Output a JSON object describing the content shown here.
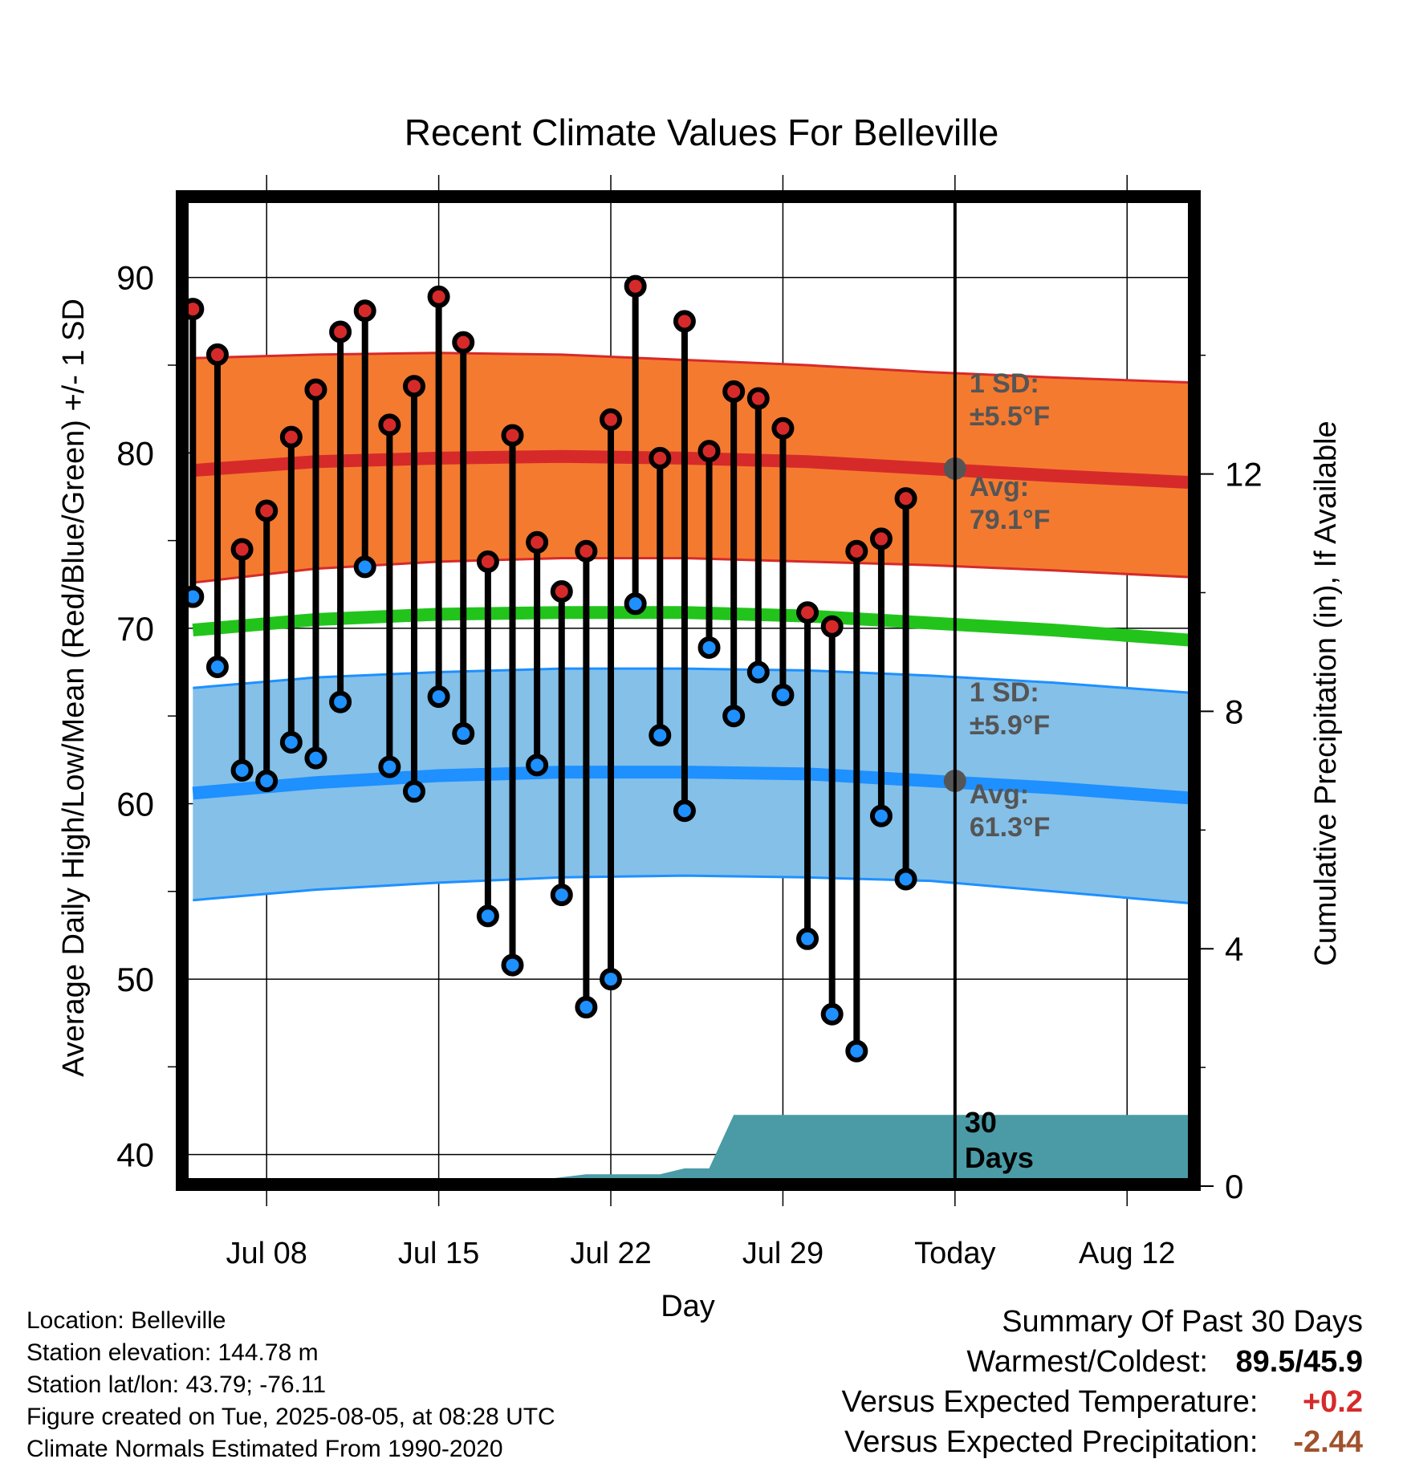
{
  "title": "Recent Climate Values For Belleville",
  "chart_data": {
    "type": "line",
    "title": "Recent Climate Values For Belleville",
    "xlabel": "Day",
    "ylabel": "Average Daily High/Low/Mean (Red/Blue/Green) +/- 1 SD",
    "y2label": "Cumulative Precipitation (in), If Available",
    "ylim": [
      38.2,
      94.7
    ],
    "y_ticks": [
      40,
      50,
      60,
      70,
      80,
      90
    ],
    "y2lim": [
      0,
      16.7
    ],
    "y2_ticks": [
      0,
      4,
      8,
      12
    ],
    "xlim": [
      4.5,
      45.8
    ],
    "x_tick_days": [
      8,
      15,
      22,
      29,
      36,
      43
    ],
    "x_tick_labels": [
      "Jul 08",
      "Jul 15",
      "Jul 22",
      "Jul 29",
      "Today",
      "Aug 12"
    ],
    "today_day": 36,
    "grid": true,
    "colors": {
      "high_band": "#f47a30",
      "high_line": "#d62a2a",
      "low_band": "#84c0e8",
      "low_line": "#1e90ff",
      "mean_line": "#22c41c",
      "precip": "#4a9ba5",
      "high_dot": "#d62a2a",
      "low_dot": "#1e90ff",
      "avg_marker": "#555555"
    },
    "normals": {
      "days": [
        5,
        10,
        15,
        20,
        25,
        30,
        35,
        40,
        45.8
      ],
      "high_upper": [
        85.4,
        85.6,
        85.7,
        85.6,
        85.3,
        85.0,
        84.6,
        84.3,
        84.0
      ],
      "high_avg": [
        79.0,
        79.5,
        79.7,
        79.8,
        79.7,
        79.5,
        79.1,
        78.7,
        78.3
      ],
      "high_lower": [
        72.6,
        73.4,
        73.8,
        74.0,
        74.0,
        73.8,
        73.6,
        73.3,
        72.9
      ],
      "mean": [
        69.9,
        70.5,
        70.8,
        70.9,
        70.9,
        70.7,
        70.3,
        69.9,
        69.3
      ],
      "low_upper": [
        66.6,
        67.2,
        67.5,
        67.7,
        67.7,
        67.6,
        67.3,
        66.9,
        66.3
      ],
      "low_avg": [
        60.6,
        61.2,
        61.6,
        61.8,
        61.8,
        61.7,
        61.3,
        60.9,
        60.3
      ],
      "low_lower": [
        54.5,
        55.1,
        55.5,
        55.8,
        55.9,
        55.8,
        55.6,
        55.0,
        54.3
      ]
    },
    "observations": {
      "days": [
        5,
        6,
        7,
        8,
        9,
        10,
        11,
        12,
        13,
        14,
        15,
        16,
        17,
        18,
        19,
        20,
        21,
        22,
        23,
        24,
        25,
        26,
        27,
        28,
        29,
        30,
        31,
        32,
        33,
        34,
        35
      ],
      "high": [
        88.2,
        85.6,
        74.5,
        76.7,
        80.9,
        83.6,
        86.9,
        88.1,
        81.6,
        83.8,
        88.9,
        86.3,
        73.8,
        81.0,
        74.9,
        72.1,
        74.4,
        81.9,
        89.5,
        79.7,
        87.5,
        80.1,
        83.5,
        83.1,
        81.4,
        70.9,
        70.1,
        74.4,
        75.1,
        77.4,
        null
      ],
      "low": [
        71.8,
        67.8,
        61.9,
        61.3,
        63.5,
        62.6,
        65.8,
        73.5,
        62.1,
        60.7,
        66.1,
        64.0,
        53.6,
        50.8,
        62.2,
        54.8,
        48.4,
        50.0,
        71.4,
        63.9,
        59.6,
        68.9,
        65.0,
        67.5,
        66.2,
        52.3,
        48.0,
        45.9,
        59.3,
        55.7,
        null
      ]
    },
    "precipitation": {
      "days": [
        4.5,
        16,
        18,
        19,
        21,
        22,
        24,
        25,
        26,
        27,
        45.8
      ],
      "cumulative": [
        0,
        0,
        0,
        0.1,
        0.2,
        0.2,
        0.2,
        0.3,
        0.3,
        1.2,
        1.2
      ]
    },
    "annotations": {
      "high_sd_label": "1 SD:",
      "high_sd_value": "±5.5°F",
      "high_avg_label": "Avg:",
      "high_avg_value": "79.1°F",
      "low_sd_label": "1 SD:",
      "low_sd_value": "±5.9°F",
      "low_avg_label": "Avg:",
      "low_avg_value": "61.3°F",
      "high_avg_today": 79.1,
      "low_avg_today": 61.3,
      "precip_window_label_1": "30",
      "precip_window_label_2": "Days"
    }
  },
  "footer": {
    "location": "Location: Belleville",
    "elevation": "Station elevation: 144.78 m",
    "latlon": "Station lat/lon: 43.79; -76.11",
    "created": "Figure created on Tue, 2025-08-05, at 08:28 UTC",
    "normals": "Climate Normals Estimated From 1990-2020"
  },
  "summary": {
    "heading": "Summary Of Past 30 Days",
    "warmest_label": "Warmest/Coldest:",
    "warmest_value": "89.5/45.9",
    "temp_label": "Versus Expected Temperature:",
    "temp_value": "+0.2",
    "temp_color": "#d62a2a",
    "precip_label": "Versus Expected Precipitation:",
    "precip_value": "-2.44",
    "precip_color": "#a0522d"
  }
}
